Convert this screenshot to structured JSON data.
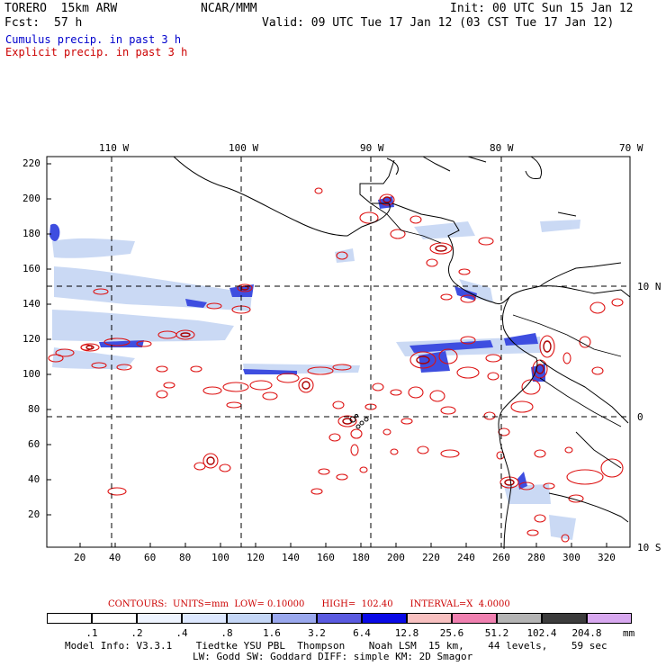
{
  "header": {
    "model": "TORERO  15km ARW",
    "center": "NCAR/MMM",
    "init": "Init: 00 UTC Sun 15 Jan 12",
    "fcst_label": "Fcst:",
    "fcst_value": "57 h",
    "valid": "Valid: 09 UTC Tue 17 Jan 12 (03 CST Tue 17 Jan 12)",
    "cumulus": "Cumulus precip. in past 3 h",
    "explicit": "Explicit precip. in past 3 h"
  },
  "map": {
    "top_lon_labels": [
      "110 W",
      "100 W",
      "90 W",
      "80 W",
      "70 W"
    ],
    "right_lat_labels": [
      "10 N",
      "0",
      "10 S"
    ],
    "y_ticks": [
      "220",
      "200",
      "180",
      "160",
      "140",
      "120",
      "100",
      "80",
      "60",
      "40",
      "20"
    ],
    "x_ticks": [
      "20",
      "40",
      "60",
      "80",
      "100",
      "120",
      "140",
      "160",
      "180",
      "200",
      "220",
      "240",
      "260",
      "280",
      "300",
      "320"
    ]
  },
  "contours": {
    "text": "CONTOURS:  UNITS=mm  LOW= 0.10000      HIGH=  102.40      INTERVAL=X  4.0000"
  },
  "legend": {
    "labels": [
      ".1",
      ".2",
      ".4",
      ".8",
      "1.6",
      "3.2",
      "6.4",
      "12.8",
      "25.6",
      "51.2",
      "102.4",
      "204.8"
    ],
    "unit": "mm",
    "colors": [
      "#ffffff",
      "#ffffff",
      "#eef4ff",
      "#dde8ff",
      "#c4d6f6",
      "#9aa8ee",
      "#5a5ae0",
      "#0a0ae6",
      "#f8c0c0",
      "#f080b0",
      "#b4b4b4",
      "#3c3c3c",
      "#d8a8f0"
    ]
  },
  "footer": {
    "line1": "Model Info: V3.3.1    Tiedtke YSU PBL  Thompson    Noah LSM  15 km,    44 levels,    59 sec",
    "line2": "LW: Godd SW: Goddard DIFF: simple KM: 2D Smagor"
  }
}
